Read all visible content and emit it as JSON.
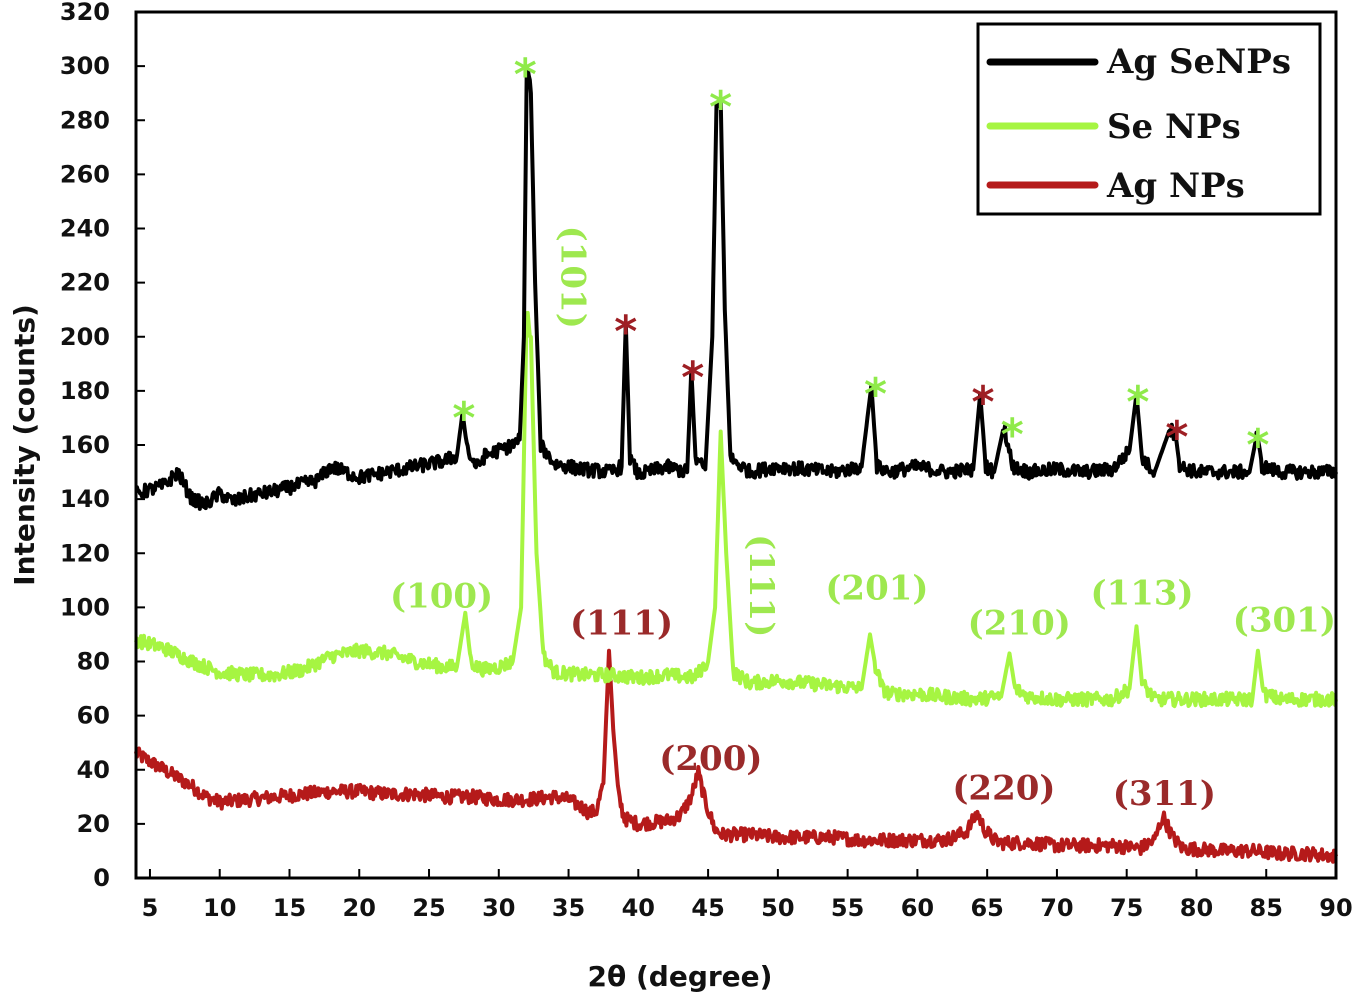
{
  "colors": {
    "ag_senps": "#000000",
    "se_nps": "#a6f542",
    "ag_nps": "#b51a1a",
    "star_se": "#8fea4a",
    "star_ag": "#9e1f24",
    "hkl_se": "#9ee84f",
    "hkl_ag": "#9a2a2a"
  },
  "chart_data": {
    "type": "line",
    "xlabel": "2θ (degree)",
    "ylabel": "Intensity (counts)",
    "xlim": [
      4,
      90
    ],
    "ylim": [
      0,
      320
    ],
    "xticks": [
      5,
      10,
      15,
      20,
      25,
      30,
      35,
      40,
      45,
      50,
      55,
      60,
      65,
      70,
      75,
      80,
      85,
      90
    ],
    "yticks": [
      0,
      20,
      40,
      60,
      80,
      100,
      120,
      140,
      160,
      180,
      200,
      220,
      240,
      260,
      280,
      300,
      320
    ],
    "legend_position": "top-right",
    "series": [
      {
        "name": "Ag SeNPs",
        "color": "#000000",
        "x": [
          4,
          6,
          7,
          8,
          9,
          10,
          11,
          12,
          14,
          17,
          18,
          20,
          24,
          26,
          27,
          27.4,
          27.7,
          28,
          28.5,
          29,
          30,
          31,
          31.5,
          31.8,
          32.0,
          32.3,
          32.6,
          33,
          34,
          36,
          38,
          38.8,
          39.1,
          39.4,
          40,
          42,
          43.5,
          43.8,
          44.1,
          44.8,
          45.3,
          45.6,
          45.9,
          46.2,
          46.6,
          48,
          50,
          52,
          54,
          56,
          56.7,
          57.1,
          58,
          60,
          62,
          64,
          64.5,
          64.9,
          65.5,
          66.2,
          66.5,
          66.8,
          68,
          70,
          72,
          74,
          75.2,
          75.7,
          76.1,
          77,
          78.1,
          78.5,
          78.8,
          80,
          82,
          83.8,
          84.3,
          84.7,
          86,
          88,
          90
        ],
        "values": [
          142,
          145,
          150,
          140,
          138,
          142,
          139,
          141,
          143,
          147,
          152,
          148,
          152,
          154,
          156,
          172,
          160,
          155,
          152,
          156,
          158,
          160,
          162,
          200,
          300,
          290,
          220,
          160,
          153,
          151,
          150,
          152,
          205,
          155,
          149,
          152,
          150,
          188,
          155,
          151,
          200,
          285,
          288,
          210,
          155,
          150,
          152,
          151,
          150,
          152,
          182,
          152,
          150,
          152,
          150,
          151,
          179,
          152,
          150,
          167,
          160,
          152,
          150,
          151,
          150,
          151,
          158,
          179,
          155,
          150,
          166,
          164,
          152,
          150,
          150,
          150,
          163,
          152,
          150,
          150,
          150
        ]
      },
      {
        "name": "Se NPs",
        "color": "#a6f542",
        "x": [
          4,
          6,
          8,
          10,
          12,
          14,
          16,
          18,
          20,
          22,
          24,
          26,
          27,
          27.6,
          28,
          28.4,
          29,
          30,
          31,
          31.6,
          32.0,
          32.3,
          32.7,
          33.2,
          34,
          36,
          38,
          40,
          42,
          44,
          45,
          45.5,
          45.9,
          46.3,
          46.8,
          48,
          50,
          52,
          54,
          56,
          56.6,
          57.0,
          57.5,
          58,
          60,
          62,
          64,
          66,
          66.6,
          67.0,
          68,
          70,
          72,
          74,
          75.2,
          75.7,
          76.1,
          77,
          80,
          82,
          84,
          84.4,
          84.8,
          86,
          88,
          90
        ],
        "values": [
          88,
          85,
          80,
          76,
          75,
          75,
          77,
          82,
          84,
          83,
          80,
          78,
          78,
          98,
          80,
          78,
          77,
          78,
          80,
          100,
          210,
          200,
          120,
          82,
          76,
          75,
          75,
          74,
          75,
          74,
          80,
          100,
          165,
          120,
          76,
          72,
          73,
          72,
          71,
          70,
          90,
          78,
          70,
          68,
          68,
          67,
          66,
          67,
          83,
          70,
          67,
          66,
          66,
          66,
          70,
          93,
          72,
          66,
          66,
          66,
          66,
          84,
          68,
          66,
          66,
          66
        ]
      },
      {
        "name": "Ag NPs",
        "color": "#b51a1a",
        "x": [
          4,
          5,
          6,
          7,
          8,
          9,
          10,
          12,
          14,
          16,
          18,
          20,
          22,
          24,
          26,
          28,
          30,
          32,
          34,
          35,
          36,
          36.5,
          37,
          37.5,
          37.9,
          38.2,
          38.6,
          39,
          40,
          42,
          43,
          43.8,
          44.3,
          44.8,
          45.5,
          46,
          48,
          50,
          52,
          54,
          56,
          58,
          60,
          62,
          63.5,
          64.3,
          64.8,
          65.5,
          66,
          68,
          70,
          72,
          74,
          76,
          77,
          77.6,
          78.3,
          79,
          82,
          84,
          86,
          88,
          90
        ],
        "values": [
          46,
          43,
          40,
          37,
          34,
          30,
          28,
          29,
          30,
          31,
          32,
          32,
          31,
          31,
          30,
          30,
          29,
          29,
          30,
          29,
          26,
          24,
          25,
          35,
          84,
          55,
          30,
          22,
          20,
          21,
          23,
          30,
          39,
          28,
          18,
          16,
          16,
          15,
          15,
          15,
          14,
          14,
          14,
          14,
          17,
          24,
          18,
          14,
          13,
          13,
          12,
          12,
          12,
          11,
          14,
          23,
          15,
          11,
          10,
          10,
          9,
          9,
          8
        ]
      }
    ],
    "peak_labels": [
      {
        "text": "(100)",
        "x": 25.9,
        "y": 100,
        "series": "Se NPs",
        "rotated": false
      },
      {
        "text": "(101)",
        "x": 34.5,
        "y": 222,
        "series": "Se NPs",
        "rotated": true
      },
      {
        "text": "(111)",
        "x": 48,
        "y": 108,
        "series": "Se NPs",
        "rotated": true
      },
      {
        "text": "(201)",
        "x": 57.1,
        "y": 103,
        "series": "Se NPs",
        "rotated": false
      },
      {
        "text": "(210)",
        "x": 67.3,
        "y": 90,
        "series": "Se NPs",
        "rotated": false
      },
      {
        "text": "(113)",
        "x": 76.1,
        "y": 101,
        "series": "Se NPs",
        "rotated": false
      },
      {
        "text": "(301)",
        "x": 86.3,
        "y": 91,
        "series": "Se NPs",
        "rotated": false
      },
      {
        "text": "(111)",
        "x": 38.8,
        "y": 90,
        "series": "Ag NPs",
        "rotated": false
      },
      {
        "text": "(200)",
        "x": 45.2,
        "y": 40,
        "series": "Ag NPs",
        "rotated": false
      },
      {
        "text": "(220)",
        "x": 66.2,
        "y": 29,
        "series": "Ag NPs",
        "rotated": false
      },
      {
        "text": "(311)",
        "x": 77.7,
        "y": 27,
        "series": "Ag NPs",
        "rotated": false
      }
    ],
    "star_markers": [
      {
        "text": "*",
        "x": 27.5,
        "y": 174,
        "kind": "Se"
      },
      {
        "text": "*",
        "x": 31.9,
        "y": 301,
        "kind": "Se"
      },
      {
        "text": "*",
        "x": 39.1,
        "y": 206,
        "kind": "Ag"
      },
      {
        "text": "*",
        "x": 43.9,
        "y": 189,
        "kind": "Ag"
      },
      {
        "text": "*",
        "x": 45.9,
        "y": 289,
        "kind": "Se"
      },
      {
        "text": "*",
        "x": 57.0,
        "y": 183,
        "kind": "Se"
      },
      {
        "text": "*",
        "x": 64.7,
        "y": 180,
        "kind": "Ag"
      },
      {
        "text": "*",
        "x": 66.8,
        "y": 168,
        "kind": "Se"
      },
      {
        "text": "*",
        "x": 75.8,
        "y": 180,
        "kind": "Se"
      },
      {
        "text": "*",
        "x": 78.6,
        "y": 167,
        "kind": "Ag"
      },
      {
        "text": "*",
        "x": 84.4,
        "y": 164,
        "kind": "Se"
      }
    ]
  }
}
